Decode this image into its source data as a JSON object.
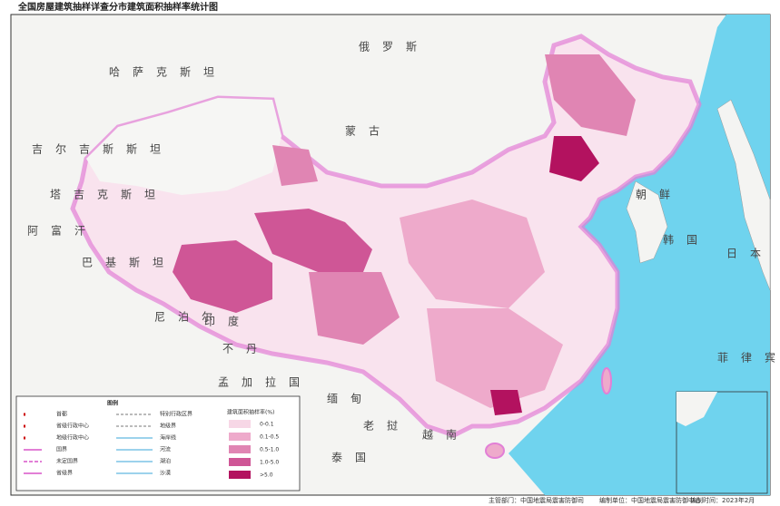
{
  "header": {
    "title": "全国房屋建筑抽样详查分市建筑面积抽样率统计图"
  },
  "countries": [
    {
      "label": "俄罗斯"
    },
    {
      "label": "蒙古"
    },
    {
      "label": "哈萨克斯坦"
    },
    {
      "label": "吉尔吉斯斯坦"
    },
    {
      "label": "塔吉克斯坦"
    },
    {
      "label": "阿富汗"
    },
    {
      "label": "巴基斯坦"
    },
    {
      "label": "印度"
    },
    {
      "label": "尼泊尔"
    },
    {
      "label": "不丹"
    },
    {
      "label": "孟加拉国"
    },
    {
      "label": "缅甸"
    },
    {
      "label": "老挝"
    },
    {
      "label": "越南"
    },
    {
      "label": "泰国"
    },
    {
      "label": "朝鲜"
    },
    {
      "label": "韩国"
    },
    {
      "label": "日本"
    },
    {
      "label": "菲律宾"
    }
  ],
  "legend": {
    "title": "图例",
    "symbols": [
      "首都",
      "省级行政中心",
      "地级行政中心",
      "国界",
      "未定国界",
      "省级界"
    ],
    "lines": [
      "特别行政区界",
      "地级界",
      "海岸线",
      "河流",
      "湖泊",
      "沙漠"
    ],
    "scale_title": "建筑面积抽样率(%)",
    "classes": [
      {
        "label": "0-0.1",
        "color": "#f7d7e6"
      },
      {
        "label": "0.1-0.5",
        "color": "#eeaacb"
      },
      {
        "label": "0.5-1.0",
        "color": "#e085b3"
      },
      {
        "label": "1.0-5.0",
        "color": "#cf5696"
      },
      {
        "label": ">5.0",
        "color": "#b3125f"
      }
    ]
  },
  "footer": {
    "authority": "主管部门：中国地震局震害防御司",
    "compiler": "编制单位：中国地震局震害防御中心",
    "date": "编制时间：2023年2月"
  }
}
